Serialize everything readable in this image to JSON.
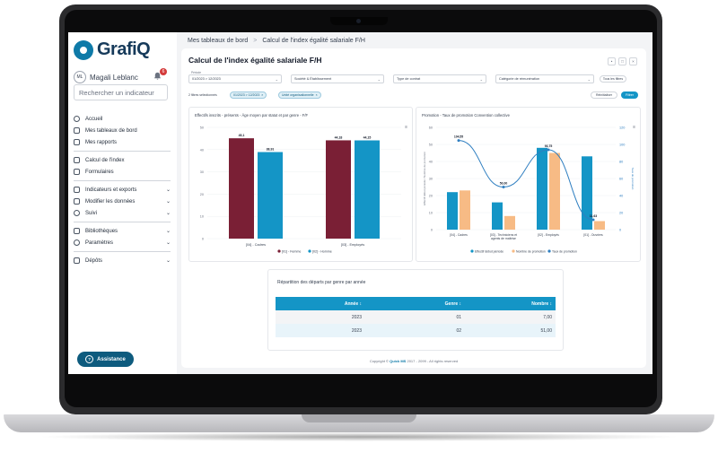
{
  "app": {
    "name": "GrafiQ"
  },
  "user": {
    "initials": "ML",
    "name": "Magali Leblanc",
    "notifications": "6"
  },
  "sidebar": {
    "search_placeholder": "Rechercher un indicateur",
    "items": [
      {
        "label": "Accueil",
        "icon": "home-icon",
        "chevron": false
      },
      {
        "label": "Mes tableaux de bord",
        "icon": "dashboard-icon",
        "chevron": false
      },
      {
        "label": "Mes rapports",
        "icon": "report-icon",
        "chevron": false
      },
      {
        "label": "Calcul de l'index",
        "icon": "calculator-icon",
        "chevron": false
      },
      {
        "label": "Formulaires",
        "icon": "form-icon",
        "chevron": false
      },
      {
        "label": "Indicateurs et exports",
        "icon": "indicator-icon",
        "chevron": true
      },
      {
        "label": "Modifier les données",
        "icon": "edit-data-icon",
        "chevron": true
      },
      {
        "label": "Suivi",
        "icon": "follow-icon",
        "chevron": true
      },
      {
        "label": "Bibliothèques",
        "icon": "library-icon",
        "chevron": true
      },
      {
        "label": "Paramètres",
        "icon": "settings-icon",
        "chevron": true
      },
      {
        "label": "Dépôts",
        "icon": "deposit-icon",
        "chevron": true
      }
    ],
    "assist_label": "Assistance"
  },
  "breadcrumb": {
    "root": "Mes tableaux de bord",
    "sep": ">",
    "current": "Calcul de l'index égalité salariale F/H"
  },
  "page": {
    "title": "Calcul de l'index égalité salariale F/H"
  },
  "filters": {
    "period_label": "Période",
    "period_value": "01/2023 > 12/2023",
    "company": "Société & Établissement",
    "contract": "Type de contrat",
    "remuneration": "Catégorie de rémunération",
    "all_filters": "Tous les filtres",
    "selected_label": "2 filtres sélectionnés",
    "chip1": "01/2023 > 12/2023",
    "chip2": "Unité organisationnelle",
    "reset": "Réinitialiser",
    "apply": "Filtrer"
  },
  "colors": {
    "female": "#7a1f35",
    "male": "#1495c6",
    "blue": "#1495c6",
    "orange": "#f7bb85",
    "line": "#2f7fc1",
    "brand": "#0e5b7e"
  },
  "chart_data": [
    {
      "type": "bar",
      "title": "Effectifs inscrits - présents - Âge moyen par statut et par genre - F/F",
      "categories": [
        "[04] - Cadres",
        "[03] - Employés"
      ],
      "series": [
        {
          "name": "[01] - Femme",
          "values": [
            45.1,
            44.18
          ]
        },
        {
          "name": "[02] - Homme",
          "values": [
            38.91,
            44.15
          ]
        }
      ],
      "value_labels": [
        [
          "45,1",
          "44,18"
        ],
        [
          "38,91",
          "44,15"
        ]
      ],
      "ylim": [
        0,
        50
      ],
      "yticks": [
        0,
        10,
        20,
        30,
        40,
        50
      ],
      "legend": "bottom"
    },
    {
      "type": "bar",
      "title": "Promotion - Taux de promotion Convention collective",
      "categories": [
        "[04] - Cadres",
        "[03] - Techniciens et agents de maîtrise",
        "[02] - Employés",
        "[01] - Ouvriers"
      ],
      "series": [
        {
          "name": "Effectif début période",
          "values": [
            22,
            16,
            48,
            43
          ]
        },
        {
          "name": "Nombre de promotion",
          "values": [
            23,
            8,
            45,
            5
          ]
        },
        {
          "name": "Taux de promotion",
          "values": [
            104.55,
            50.0,
            93.75,
            11.63
          ]
        }
      ],
      "point_labels": [
        "104,55",
        "50,00",
        "93,75",
        "11,63"
      ],
      "ylim": [
        0,
        60
      ],
      "yticks": [
        0,
        10,
        20,
        30,
        40,
        50,
        60
      ],
      "y2lim": [
        0,
        120
      ],
      "y2ticks": [
        0,
        20,
        40,
        60,
        80,
        100,
        120
      ],
      "ylabel": "Effectif début période / Nombre de promotion",
      "y2label": "Taux de promotion",
      "legend": "bottom"
    }
  ],
  "table": {
    "title": "Répartition des départs par genre par année",
    "headers": [
      "Année",
      "Genre",
      "Nombre"
    ],
    "rows": [
      [
        "2023",
        "01",
        "7,00"
      ],
      [
        "2023",
        "02",
        "51,00"
      ]
    ]
  },
  "footer": {
    "text": "Copyright ©",
    "brand": "Quick MS",
    "rest": "2017 - 2099 - All rights reserved"
  }
}
